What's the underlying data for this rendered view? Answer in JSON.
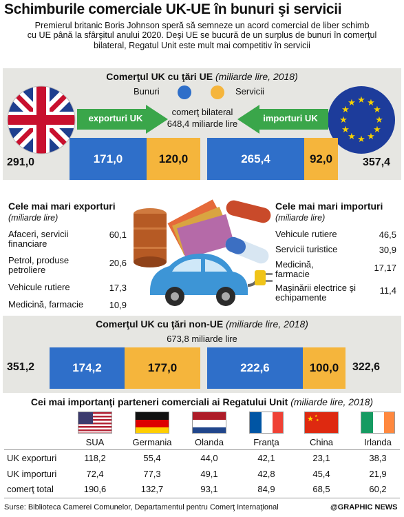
{
  "title": "Schimburile comerciale UK-UE în bunuri şi servicii",
  "intro": [
    "Premierul britanic Boris Johnson speră să semneze un acord comercial de liber schimb",
    "cu UE până la sfârşitul anului 2020. Deşi UE se bucură de un surplus de bunuri în comerţul",
    "bilateral, Regatul Unit este mult mai competitiv în servicii"
  ],
  "colors": {
    "goods": "#2f6fc9",
    "services": "#f5b53c",
    "arrow": "#3aa64a",
    "panel": "#e6e6e2"
  },
  "eu_section": {
    "title": "Comerţul UK cu ţări UE",
    "unit": "(miliarde lire, 2018)",
    "legend_goods": "Bunuri",
    "legend_services": "Servicii",
    "exports_label": "exporturi UK",
    "imports_label": "importuri UK",
    "bilateral_label": "comerţ bilateral",
    "bilateral_value": "648,4 miliarde lire"
  },
  "top_exports": {
    "title": "Cele mai mari exporturi",
    "sub": "(miliarde lire)",
    "items": [
      {
        "name": "Afaceri, servicii financiare",
        "value": "60,1"
      },
      {
        "name": "Petrol, produse petroliere",
        "value": "20,6"
      },
      {
        "name": "Vehicule rutiere",
        "value": "17,3"
      },
      {
        "name": "Medicină, farmacie",
        "value": "10,9"
      }
    ]
  },
  "top_imports": {
    "title": "Cele mai mari importuri",
    "sub": "(miliarde lire)",
    "items": [
      {
        "name": "Vehicule rutiere",
        "value": "46,5"
      },
      {
        "name": "Servicii turistice",
        "value": "30,9"
      },
      {
        "name": "Medicină, farmacie",
        "value": "17,17"
      },
      {
        "name": "Maşinării electrice şi echipamente",
        "value": "11,4"
      }
    ]
  },
  "non_eu_section": {
    "title": "Comerţul UK cu ţări non-UE",
    "unit": "(miliarde lire, 2018)",
    "bilateral_value": "673,8 miliarde lire"
  },
  "partners": {
    "title": "Cei mai importanţi parteneri comerciali ai Regatului Unit",
    "unit": "(miliarde lire, 2018)",
    "countries": [
      "SUA",
      "Germania",
      "Olanda",
      "Franţa",
      "China",
      "Irlanda"
    ],
    "rows": [
      {
        "label": "UK exporturi",
        "values": [
          "118,2",
          "55,4",
          "44,0",
          "42,1",
          "23,1",
          "38,3"
        ]
      },
      {
        "label": "UK importuri",
        "values": [
          "72,4",
          "77,3",
          "49,1",
          "42,8",
          "45,4",
          "21,9"
        ]
      },
      {
        "label": "comerţ total",
        "values": [
          "190,6",
          "132,7",
          "93,1",
          "84,9",
          "68,5",
          "60,2"
        ]
      }
    ]
  },
  "source": "Surse: Biblioteca Camerei Comunelor, Departamentul pentru Comerţ Internaţional",
  "credit": "@GRAPHIC NEWS",
  "chart_data": [
    {
      "type": "bar",
      "title": "Comerţul UK cu ţări UE",
      "series": [
        {
          "name": "Bunuri",
          "values": [
            171.0,
            265.4
          ]
        },
        {
          "name": "Servicii",
          "values": [
            120.0,
            92.0
          ]
        }
      ],
      "categories": [
        "exporturi UK",
        "importuri UK"
      ],
      "totals": [
        291.0,
        357.4
      ],
      "labels": {
        "exp_total": "291,0",
        "exp_goods": "171,0",
        "exp_services": "120,0",
        "imp_goods": "265,4",
        "imp_services": "92,0",
        "imp_total": "357,4"
      }
    },
    {
      "type": "bar",
      "title": "Comerţul UK cu ţări non-UE",
      "series": [
        {
          "name": "Bunuri",
          "values": [
            174.2,
            222.6
          ]
        },
        {
          "name": "Servicii",
          "values": [
            177.0,
            100.0
          ]
        }
      ],
      "categories": [
        "exporturi UK",
        "importuri UK"
      ],
      "totals": [
        351.2,
        322.6
      ],
      "labels": {
        "exp_total": "351,2",
        "exp_goods": "174,2",
        "exp_services": "177,0",
        "imp_goods": "222,6",
        "imp_services": "100,0",
        "imp_total": "322,6"
      }
    }
  ]
}
